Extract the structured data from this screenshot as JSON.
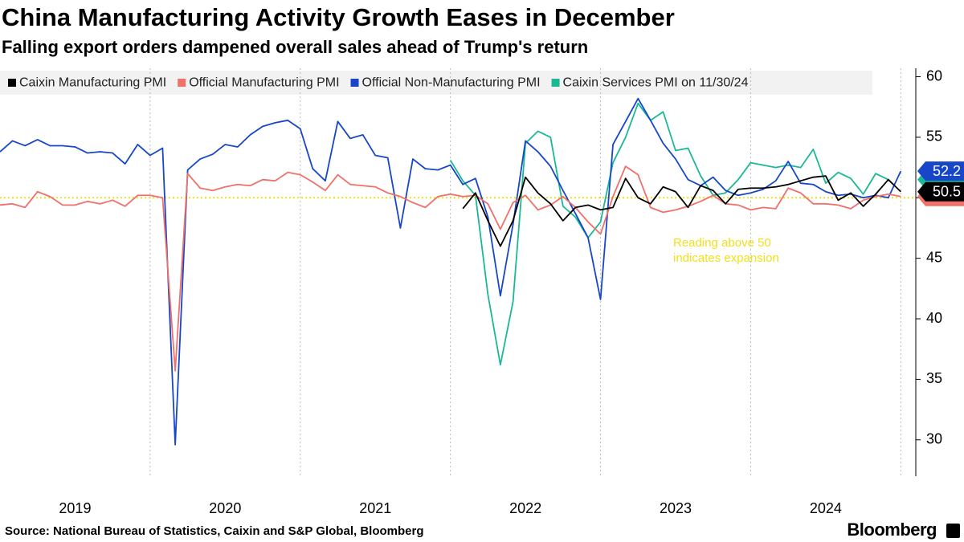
{
  "chart_data": {
    "type": "line",
    "title": "China Manufacturing Activity Growth Eases in December",
    "subtitle": "Falling export orders dampened overall sales ahead of Trump's return",
    "source": "Source: National Bureau of Statistics, Caixin and S&P Global, Bloomberg",
    "logo": "Bloomberg",
    "annotation": [
      "Reading above 50",
      "indicates expansion"
    ],
    "threshold": 50,
    "threshold_color": "#f2e01c",
    "x": [
      2019.0,
      2019.083,
      2019.167,
      2019.25,
      2019.333,
      2019.417,
      2019.5,
      2019.583,
      2019.667,
      2019.75,
      2019.833,
      2019.917,
      2020.0,
      2020.083,
      2020.167,
      2020.25,
      2020.333,
      2020.417,
      2020.5,
      2020.583,
      2020.667,
      2020.75,
      2020.833,
      2020.917,
      2021.0,
      2021.083,
      2021.167,
      2021.25,
      2021.333,
      2021.417,
      2021.5,
      2021.583,
      2021.667,
      2021.75,
      2021.833,
      2021.917,
      2022.0,
      2022.083,
      2022.167,
      2022.25,
      2022.333,
      2022.417,
      2022.5,
      2022.583,
      2022.667,
      2022.75,
      2022.833,
      2022.917,
      2023.0,
      2023.083,
      2023.167,
      2023.25,
      2023.333,
      2023.417,
      2023.5,
      2023.583,
      2023.667,
      2023.75,
      2023.833,
      2023.917,
      2024.0,
      2024.083,
      2024.167,
      2024.25,
      2024.333,
      2024.417,
      2024.5,
      2024.583,
      2024.667,
      2024.75,
      2024.833,
      2024.917,
      2025.0
    ],
    "xlim": [
      2019,
      2025.1
    ],
    "xticks": [
      {
        "value": 2019.5,
        "label": "2019"
      },
      {
        "value": 2020.5,
        "label": "2020"
      },
      {
        "value": 2021.5,
        "label": "2021"
      },
      {
        "value": 2022.5,
        "label": "2022"
      },
      {
        "value": 2023.5,
        "label": "2023"
      },
      {
        "value": 2024.5,
        "label": "2024"
      }
    ],
    "xgrid": [
      2020,
      2021,
      2022,
      2023,
      2024,
      2025
    ],
    "ylim": [
      27,
      60.7
    ],
    "yticks": [
      30,
      35,
      40,
      45,
      50,
      55,
      60
    ],
    "series": [
      {
        "name": "Caixin Manufacturing PMI",
        "color": "#000000",
        "end_label": true,
        "values": [
          null,
          null,
          null,
          null,
          null,
          null,
          null,
          null,
          null,
          null,
          null,
          null,
          null,
          null,
          null,
          null,
          null,
          null,
          null,
          null,
          null,
          null,
          null,
          null,
          null,
          null,
          null,
          null,
          null,
          null,
          null,
          null,
          null,
          null,
          null,
          null,
          null,
          49.1,
          50.4,
          48.1,
          46.0,
          48.1,
          51.7,
          50.4,
          49.5,
          48.1,
          49.2,
          49.4,
          49.0,
          49.2,
          51.6,
          50.0,
          49.5,
          50.9,
          50.5,
          49.2,
          51.0,
          50.6,
          49.5,
          50.7,
          50.8,
          50.8,
          50.9,
          51.1,
          51.4,
          51.7,
          51.8,
          49.8,
          50.4,
          49.3,
          50.3,
          51.5,
          50.5
        ]
      },
      {
        "name": "Official Manufacturing PMI",
        "color": "#f0706a",
        "end_label": false,
        "values": [
          49.4,
          49.5,
          49.2,
          50.5,
          50.1,
          49.4,
          49.4,
          49.7,
          49.5,
          49.8,
          49.3,
          50.2,
          50.2,
          50.0,
          35.7,
          52.0,
          50.8,
          50.6,
          50.9,
          51.1,
          51.0,
          51.5,
          51.4,
          52.1,
          51.9,
          51.3,
          50.6,
          51.9,
          51.1,
          51.0,
          50.9,
          50.4,
          50.1,
          49.6,
          49.2,
          50.1,
          50.3,
          50.1,
          50.2,
          49.5,
          47.4,
          49.6,
          50.2,
          49.0,
          49.4,
          50.1,
          49.2,
          48.0,
          47.0,
          50.1,
          52.6,
          51.9,
          49.2,
          48.8,
          49.0,
          49.3,
          49.7,
          50.2,
          49.5,
          49.4,
          49.0,
          49.2,
          49.1,
          50.8,
          50.4,
          49.5,
          49.5,
          49.4,
          49.1,
          49.8,
          50.1,
          50.3,
          50.1
        ]
      },
      {
        "name": "Official Non-Manufacturing PMI",
        "color": "#1746c9",
        "end_label": true,
        "values": [
          53.8,
          54.7,
          54.3,
          54.8,
          54.3,
          54.3,
          54.2,
          53.7,
          53.8,
          53.7,
          52.8,
          54.4,
          53.5,
          54.1,
          29.6,
          52.3,
          53.2,
          53.6,
          54.4,
          54.2,
          55.2,
          55.9,
          56.2,
          56.4,
          55.7,
          52.4,
          51.4,
          56.3,
          54.9,
          55.2,
          53.5,
          53.3,
          47.5,
          53.2,
          52.4,
          52.3,
          52.7,
          51.1,
          51.6,
          48.4,
          41.9,
          47.8,
          54.7,
          53.8,
          52.6,
          50.6,
          48.7,
          46.7,
          41.6,
          54.4,
          56.3,
          58.2,
          56.4,
          54.5,
          53.2,
          51.5,
          51.0,
          51.7,
          50.6,
          50.2,
          50.4,
          50.7,
          51.4,
          53.0,
          51.2,
          51.1,
          50.5,
          50.2,
          50.3,
          50.0,
          50.2,
          50.0,
          52.2
        ]
      },
      {
        "name": "Caixin Services PMI on 11/30/24",
        "color": "#1bb896",
        "end_label": false,
        "values": [
          null,
          null,
          null,
          null,
          null,
          null,
          null,
          null,
          null,
          null,
          null,
          null,
          null,
          null,
          null,
          null,
          null,
          null,
          null,
          null,
          null,
          null,
          null,
          null,
          null,
          null,
          null,
          null,
          null,
          null,
          null,
          null,
          null,
          null,
          null,
          null,
          53.1,
          51.4,
          50.2,
          42.0,
          36.2,
          41.4,
          54.5,
          55.5,
          55.0,
          49.3,
          48.4,
          46.7,
          48.0,
          52.9,
          55.0,
          57.8,
          56.4,
          57.1,
          53.9,
          54.1,
          51.8,
          50.2,
          50.4,
          51.5,
          52.9,
          52.7,
          52.5,
          52.7,
          52.5,
          54.0,
          51.2,
          52.1,
          51.6,
          50.3,
          52.0,
          51.5,
          null
        ]
      }
    ]
  }
}
